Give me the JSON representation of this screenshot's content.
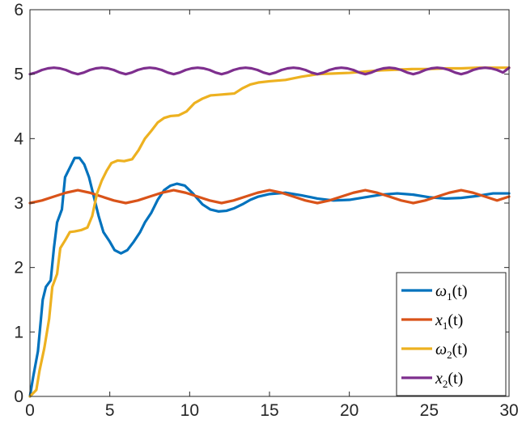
{
  "chart_data": {
    "type": "line",
    "title": "",
    "xlabel": "",
    "ylabel": "",
    "xlim": [
      0,
      30
    ],
    "ylim": [
      0,
      6
    ],
    "x_ticks": [
      "0",
      "5",
      "10",
      "15",
      "20",
      "25",
      "30"
    ],
    "y_ticks": [
      "0",
      "1",
      "2",
      "3",
      "4",
      "5",
      "6"
    ],
    "grid": false,
    "legend_position": "bottom-right",
    "series": [
      {
        "name": "ω1(t)",
        "legend": {
          "sym": "ω",
          "sub": "1",
          "arg": "(t)"
        },
        "color": "#0072BD",
        "points": [
          [
            0,
            0
          ],
          [
            0.2,
            0.3
          ],
          [
            0.5,
            0.7
          ],
          [
            0.8,
            1.5
          ],
          [
            1.0,
            1.7
          ],
          [
            1.3,
            1.8
          ],
          [
            1.5,
            2.3
          ],
          [
            1.7,
            2.7
          ],
          [
            2.0,
            2.9
          ],
          [
            2.2,
            3.4
          ],
          [
            2.5,
            3.55
          ],
          [
            2.8,
            3.7
          ],
          [
            3.1,
            3.7
          ],
          [
            3.4,
            3.6
          ],
          [
            3.7,
            3.4
          ],
          [
            4.0,
            3.1
          ],
          [
            4.3,
            2.8
          ],
          [
            4.6,
            2.55
          ],
          [
            5.0,
            2.4
          ],
          [
            5.3,
            2.27
          ],
          [
            5.7,
            2.22
          ],
          [
            6.1,
            2.27
          ],
          [
            6.5,
            2.4
          ],
          [
            6.9,
            2.55
          ],
          [
            7.2,
            2.7
          ],
          [
            7.6,
            2.85
          ],
          [
            8.0,
            3.05
          ],
          [
            8.4,
            3.2
          ],
          [
            8.8,
            3.27
          ],
          [
            9.2,
            3.3
          ],
          [
            9.7,
            3.27
          ],
          [
            10.2,
            3.15
          ],
          [
            10.8,
            2.98
          ],
          [
            11.3,
            2.9
          ],
          [
            11.8,
            2.87
          ],
          [
            12.3,
            2.88
          ],
          [
            12.8,
            2.92
          ],
          [
            13.3,
            2.98
          ],
          [
            13.8,
            3.05
          ],
          [
            14.3,
            3.1
          ],
          [
            15.0,
            3.14
          ],
          [
            16.0,
            3.16
          ],
          [
            17.0,
            3.12
          ],
          [
            18.0,
            3.07
          ],
          [
            19.0,
            3.04
          ],
          [
            20.0,
            3.05
          ],
          [
            21.0,
            3.09
          ],
          [
            22.0,
            3.13
          ],
          [
            23.0,
            3.15
          ],
          [
            24.0,
            3.13
          ],
          [
            25.0,
            3.09
          ],
          [
            26.0,
            3.07
          ],
          [
            27.0,
            3.08
          ],
          [
            28.0,
            3.11
          ],
          [
            29.0,
            3.15
          ],
          [
            30.0,
            3.15
          ]
        ]
      },
      {
        "name": "x1(t)",
        "legend": {
          "sym": "x",
          "sub": "1",
          "arg": "(t)"
        },
        "color": "#D95319",
        "points": [
          [
            0,
            3.0
          ],
          [
            0.75,
            3.04
          ],
          [
            1.5,
            3.1
          ],
          [
            2.25,
            3.16
          ],
          [
            3.0,
            3.2
          ],
          [
            3.75,
            3.16
          ],
          [
            4.5,
            3.1
          ],
          [
            5.25,
            3.04
          ],
          [
            6.0,
            3.0
          ],
          [
            6.75,
            3.04
          ],
          [
            7.5,
            3.1
          ],
          [
            8.25,
            3.16
          ],
          [
            9.0,
            3.2
          ],
          [
            9.75,
            3.16
          ],
          [
            10.5,
            3.1
          ],
          [
            11.25,
            3.04
          ],
          [
            12.0,
            3.0
          ],
          [
            12.75,
            3.04
          ],
          [
            13.5,
            3.1
          ],
          [
            14.25,
            3.16
          ],
          [
            15.0,
            3.2
          ],
          [
            15.75,
            3.16
          ],
          [
            16.5,
            3.1
          ],
          [
            17.25,
            3.04
          ],
          [
            18.0,
            3.0
          ],
          [
            18.75,
            3.04
          ],
          [
            19.5,
            3.1
          ],
          [
            20.25,
            3.16
          ],
          [
            21.0,
            3.2
          ],
          [
            21.75,
            3.16
          ],
          [
            22.5,
            3.1
          ],
          [
            23.25,
            3.04
          ],
          [
            24.0,
            3.0
          ],
          [
            24.75,
            3.04
          ],
          [
            25.5,
            3.1
          ],
          [
            26.25,
            3.16
          ],
          [
            27.0,
            3.2
          ],
          [
            27.75,
            3.16
          ],
          [
            28.5,
            3.1
          ],
          [
            29.25,
            3.04
          ],
          [
            30.0,
            3.1
          ]
        ]
      },
      {
        "name": "ω2(t)",
        "legend": {
          "sym": "ω",
          "sub": "2",
          "arg": "(t)"
        },
        "color": "#EDB120",
        "points": [
          [
            0,
            0
          ],
          [
            0.4,
            0.1
          ],
          [
            0.6,
            0.4
          ],
          [
            0.9,
            0.75
          ],
          [
            1.2,
            1.2
          ],
          [
            1.4,
            1.7
          ],
          [
            1.7,
            1.9
          ],
          [
            1.9,
            2.3
          ],
          [
            2.2,
            2.42
          ],
          [
            2.5,
            2.55
          ],
          [
            2.8,
            2.56
          ],
          [
            3.2,
            2.58
          ],
          [
            3.6,
            2.62
          ],
          [
            3.9,
            2.8
          ],
          [
            4.2,
            3.15
          ],
          [
            4.5,
            3.35
          ],
          [
            4.8,
            3.5
          ],
          [
            5.1,
            3.62
          ],
          [
            5.5,
            3.66
          ],
          [
            5.9,
            3.65
          ],
          [
            6.4,
            3.68
          ],
          [
            6.8,
            3.82
          ],
          [
            7.2,
            4.0
          ],
          [
            7.6,
            4.12
          ],
          [
            8.0,
            4.25
          ],
          [
            8.4,
            4.32
          ],
          [
            8.8,
            4.35
          ],
          [
            9.3,
            4.36
          ],
          [
            9.8,
            4.42
          ],
          [
            10.3,
            4.55
          ],
          [
            10.8,
            4.62
          ],
          [
            11.3,
            4.67
          ],
          [
            11.8,
            4.68
          ],
          [
            12.3,
            4.69
          ],
          [
            12.8,
            4.7
          ],
          [
            13.3,
            4.78
          ],
          [
            13.8,
            4.84
          ],
          [
            14.3,
            4.87
          ],
          [
            15.0,
            4.89
          ],
          [
            16.0,
            4.91
          ],
          [
            17.0,
            4.96
          ],
          [
            18.0,
            5.0
          ],
          [
            19.0,
            5.01
          ],
          [
            20.0,
            5.02
          ],
          [
            21.0,
            5.04
          ],
          [
            22.0,
            5.06
          ],
          [
            23.0,
            5.07
          ],
          [
            24.0,
            5.08
          ],
          [
            25.0,
            5.08
          ],
          [
            26.0,
            5.09
          ],
          [
            27.0,
            5.09
          ],
          [
            28.0,
            5.1
          ],
          [
            29.0,
            5.1
          ],
          [
            30.0,
            5.1
          ]
        ]
      },
      {
        "name": "x2(t)",
        "legend": {
          "sym": "x",
          "sub": "2",
          "arg": "(t)"
        },
        "color": "#7E2F8E",
        "points": [
          [
            0,
            5.0
          ],
          [
            0.375,
            5.025
          ],
          [
            0.75,
            5.065
          ],
          [
            1.125,
            5.09
          ],
          [
            1.5,
            5.1
          ],
          [
            1.875,
            5.09
          ],
          [
            2.25,
            5.065
          ],
          [
            2.625,
            5.025
          ],
          [
            3.0,
            5.0
          ],
          [
            3.375,
            5.025
          ],
          [
            3.75,
            5.065
          ],
          [
            4.125,
            5.09
          ],
          [
            4.5,
            5.1
          ],
          [
            4.875,
            5.09
          ],
          [
            5.25,
            5.065
          ],
          [
            5.625,
            5.025
          ],
          [
            6.0,
            5.0
          ],
          [
            6.375,
            5.025
          ],
          [
            6.75,
            5.065
          ],
          [
            7.125,
            5.09
          ],
          [
            7.5,
            5.1
          ],
          [
            7.875,
            5.09
          ],
          [
            8.25,
            5.065
          ],
          [
            8.625,
            5.025
          ],
          [
            9.0,
            5.0
          ],
          [
            9.375,
            5.025
          ],
          [
            9.75,
            5.065
          ],
          [
            10.125,
            5.09
          ],
          [
            10.5,
            5.1
          ],
          [
            10.875,
            5.09
          ],
          [
            11.25,
            5.065
          ],
          [
            11.625,
            5.025
          ],
          [
            12.0,
            5.0
          ],
          [
            12.375,
            5.025
          ],
          [
            12.75,
            5.065
          ],
          [
            13.125,
            5.09
          ],
          [
            13.5,
            5.1
          ],
          [
            13.875,
            5.09
          ],
          [
            14.25,
            5.065
          ],
          [
            14.625,
            5.025
          ],
          [
            15.0,
            5.0
          ],
          [
            15.375,
            5.025
          ],
          [
            15.75,
            5.065
          ],
          [
            16.125,
            5.09
          ],
          [
            16.5,
            5.1
          ],
          [
            16.875,
            5.09
          ],
          [
            17.25,
            5.065
          ],
          [
            17.625,
            5.025
          ],
          [
            18.0,
            5.0
          ],
          [
            18.375,
            5.025
          ],
          [
            18.75,
            5.065
          ],
          [
            19.125,
            5.09
          ],
          [
            19.5,
            5.1
          ],
          [
            19.875,
            5.09
          ],
          [
            20.25,
            5.065
          ],
          [
            20.625,
            5.025
          ],
          [
            21.0,
            5.0
          ],
          [
            21.375,
            5.025
          ],
          [
            21.75,
            5.065
          ],
          [
            22.125,
            5.09
          ],
          [
            22.5,
            5.1
          ],
          [
            22.875,
            5.09
          ],
          [
            23.25,
            5.065
          ],
          [
            23.625,
            5.025
          ],
          [
            24.0,
            5.0
          ],
          [
            24.375,
            5.025
          ],
          [
            24.75,
            5.065
          ],
          [
            25.125,
            5.09
          ],
          [
            25.5,
            5.1
          ],
          [
            25.875,
            5.09
          ],
          [
            26.25,
            5.065
          ],
          [
            26.625,
            5.025
          ],
          [
            27.0,
            5.0
          ],
          [
            27.375,
            5.025
          ],
          [
            27.75,
            5.065
          ],
          [
            28.125,
            5.09
          ],
          [
            28.5,
            5.1
          ],
          [
            28.875,
            5.09
          ],
          [
            29.25,
            5.065
          ],
          [
            29.625,
            5.025
          ],
          [
            30.0,
            5.1
          ]
        ]
      }
    ]
  }
}
